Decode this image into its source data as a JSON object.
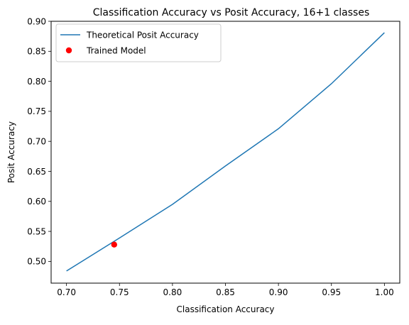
{
  "chart_data": {
    "type": "line",
    "title": "Classification Accuracy vs Posit Accuracy, 16+1 classes",
    "xlabel": "Classification Accuracy",
    "ylabel": "Posit Accuracy",
    "xlim": [
      0.6855,
      1.0145
    ],
    "ylim": [
      0.4638,
      0.9
    ],
    "xticks": [
      0.7,
      0.75,
      0.8,
      0.85,
      0.9,
      0.95,
      1.0
    ],
    "xtick_labels": [
      "0.70",
      "0.75",
      "0.80",
      "0.85",
      "0.90",
      "0.95",
      "1.00"
    ],
    "yticks": [
      0.5,
      0.55,
      0.6,
      0.65,
      0.7,
      0.75,
      0.8,
      0.85,
      0.9
    ],
    "ytick_labels": [
      "0.50",
      "0.55",
      "0.60",
      "0.65",
      "0.70",
      "0.75",
      "0.80",
      "0.85",
      "0.90"
    ],
    "grid": false,
    "legend_position": "top-left",
    "series": [
      {
        "name": "Theoretical Posit Accuracy",
        "kind": "line",
        "color": "#1f77b4",
        "x": [
          0.7,
          0.75,
          0.8,
          0.85,
          0.9,
          0.95,
          1.0
        ],
        "y": [
          0.484,
          0.539,
          0.595,
          0.659,
          0.721,
          0.796,
          0.881
        ]
      },
      {
        "name": "Trained Model",
        "kind": "scatter",
        "color": "#ff0000",
        "x": [
          0.745
        ],
        "y": [
          0.528
        ]
      }
    ]
  }
}
